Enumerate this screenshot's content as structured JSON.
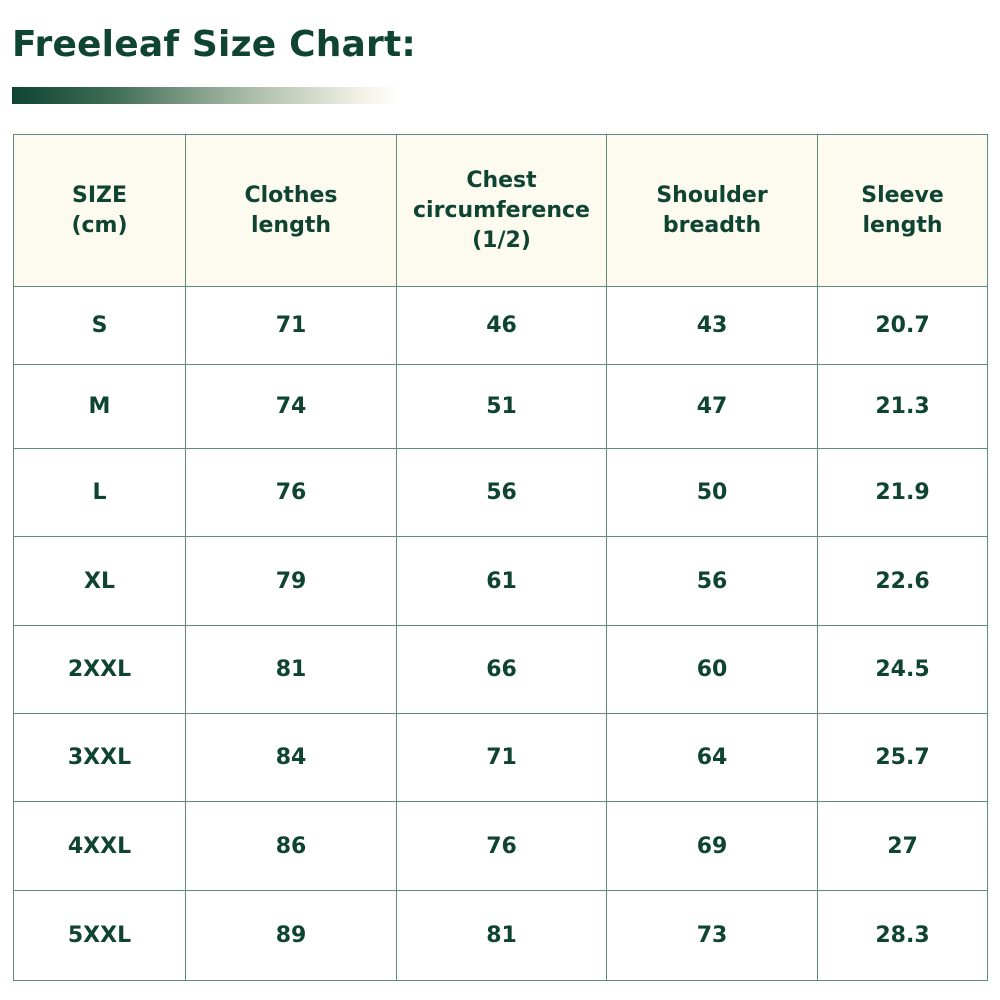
{
  "title": "Freeleaf Size Chart:",
  "colors": {
    "primary": "#0f4433",
    "header_bg": "#fdfbf0",
    "border": "#5f8b7c"
  },
  "table": {
    "headers": [
      [
        "SIZE",
        "(cm)"
      ],
      [
        "Clothes",
        "length"
      ],
      [
        "Chest",
        "circumference",
        "(1/2)"
      ],
      [
        "Shoulder",
        "breadth"
      ],
      [
        "Sleeve",
        "length"
      ]
    ],
    "rows": [
      [
        "S",
        "71",
        "46",
        "43",
        "20.7"
      ],
      [
        "M",
        "74",
        "51",
        "47",
        "21.3"
      ],
      [
        "L",
        "76",
        "56",
        "50",
        "21.9"
      ],
      [
        "XL",
        "79",
        "61",
        "56",
        "22.6"
      ],
      [
        "2XXL",
        "81",
        "66",
        "60",
        "24.5"
      ],
      [
        "3XXL",
        "84",
        "71",
        "64",
        "25.7"
      ],
      [
        "4XXL",
        "86",
        "76",
        "69",
        "27"
      ],
      [
        "5XXL",
        "89",
        "81",
        "73",
        "28.3"
      ]
    ]
  }
}
